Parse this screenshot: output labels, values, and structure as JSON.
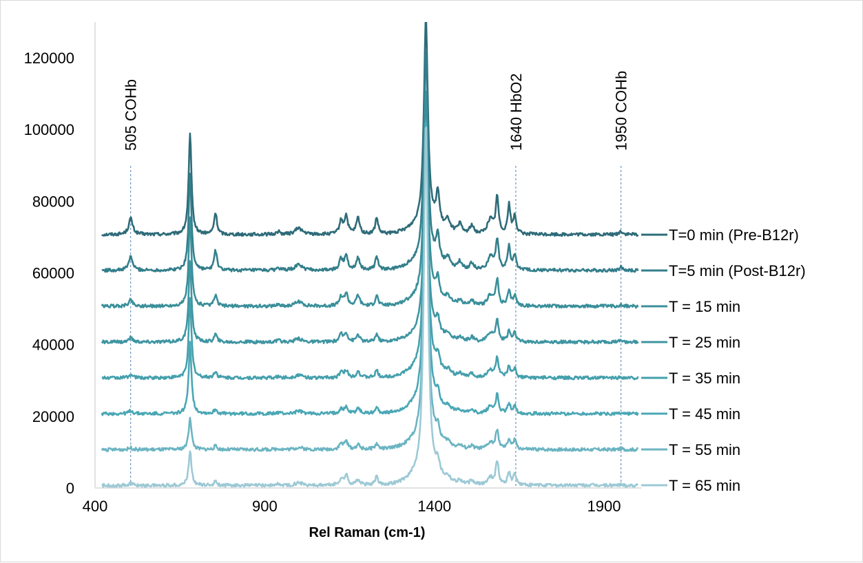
{
  "chart_data": {
    "type": "line",
    "title": "",
    "xlabel": "Rel Raman (cm-1)",
    "ylabel": "",
    "xlim": [
      400,
      2200
    ],
    "ylim": [
      0,
      130000
    ],
    "x_ticks": [
      "400",
      "900",
      "1400",
      "1900"
    ],
    "y_ticks": [
      "0",
      "20000",
      "40000",
      "60000",
      "80000",
      "100000",
      "120000"
    ],
    "grid": false,
    "legend_placement": "right",
    "x_range": [
      420,
      2000
    ],
    "annotations": [
      {
        "x": 505,
        "label": "505 COHb"
      },
      {
        "x": 1640,
        "label": "1640 HbO2"
      },
      {
        "x": 1950,
        "label": "1950 COHb"
      }
    ],
    "peaks": [
      {
        "x": 505,
        "width": 7,
        "amps": [
          4500,
          3800,
          1800,
          1200,
          900,
          800,
          500,
          600
        ]
      },
      {
        "x": 680,
        "width": 5,
        "amps": [
          28000,
          27000,
          25000,
          23000,
          22000,
          20000,
          9000,
          9800
        ]
      },
      {
        "x": 755,
        "width": 5,
        "amps": [
          6000,
          5500,
          3000,
          2200,
          1800,
          1200,
          1000,
          1200
        ]
      },
      {
        "x": 940,
        "width": 6,
        "amps": [
          800,
          700,
          500,
          400,
          300,
          300,
          300,
          300
        ]
      },
      {
        "x": 1000,
        "width": 12,
        "amps": [
          1800,
          1600,
          1300,
          900,
          800,
          700,
          600,
          800
        ]
      },
      {
        "x": 1125,
        "width": 6,
        "amps": [
          3500,
          3000,
          2500,
          2000,
          1500,
          1400,
          1600,
          1700
        ]
      },
      {
        "x": 1140,
        "width": 6,
        "amps": [
          5000,
          4000,
          3500,
          2500,
          2000,
          1700,
          2200,
          2800
        ]
      },
      {
        "x": 1175,
        "width": 6,
        "amps": [
          4500,
          3500,
          3000,
          2000,
          1800,
          1500,
          1300,
          1600
        ]
      },
      {
        "x": 1230,
        "width": 5,
        "amps": [
          4500,
          3800,
          2900,
          2200,
          1900,
          1600,
          1500,
          2300
        ]
      },
      {
        "x": 1375,
        "width": 7,
        "amps": [
          58000,
          59000,
          58000,
          59000,
          70000,
          80000,
          88000,
          99000
        ]
      },
      {
        "x": 1410,
        "width": 6,
        "amps": [
          9000,
          7000,
          5000,
          4000,
          3500,
          3000,
          3000,
          3500
        ]
      },
      {
        "x": 1440,
        "width": 8,
        "amps": [
          3000,
          2500,
          1800,
          1500,
          1200,
          1000,
          1000,
          1200
        ]
      },
      {
        "x": 1475,
        "width": 7,
        "amps": [
          2500,
          2000,
          1500,
          1200,
          1000,
          800,
          800,
          1000
        ]
      },
      {
        "x": 1510,
        "width": 7,
        "amps": [
          2200,
          1800,
          1500,
          1200,
          1000,
          800,
          800,
          1000
        ]
      },
      {
        "x": 1565,
        "width": 10,
        "amps": [
          4000,
          3500,
          3000,
          2500,
          2000,
          1800,
          1800,
          2000
        ]
      },
      {
        "x": 1585,
        "width": 5,
        "amps": [
          10000,
          8500,
          7000,
          6000,
          5500,
          5000,
          5200,
          6500
        ]
      },
      {
        "x": 1620,
        "width": 5,
        "amps": [
          8000,
          6500,
          4000,
          3000,
          3000,
          2800,
          2800,
          3500
        ]
      },
      {
        "x": 1637,
        "width": 5,
        "amps": [
          5000,
          4000,
          3000,
          2500,
          2500,
          2000,
          2500,
          3000
        ]
      },
      {
        "x": 1950,
        "width": 5,
        "amps": [
          1000,
          900,
          500,
          400,
          300,
          300,
          300,
          300
        ]
      }
    ],
    "series": [
      {
        "name": "T=0 min (Pre-B12r)",
        "offset": 70000,
        "color": "#2e6b78"
      },
      {
        "name": "T=5 min (Post-B12r)",
        "offset": 60000,
        "color": "#337e8b"
      },
      {
        "name": "T = 15 min",
        "offset": 50000,
        "color": "#3a8f9a"
      },
      {
        "name": "T = 25  min",
        "offset": 40000,
        "color": "#3f95a2"
      },
      {
        "name": "T = 35 min",
        "offset": 30000,
        "color": "#45a0ad"
      },
      {
        "name": "T = 45 min",
        "offset": 20000,
        "color": "#4aa7b5"
      },
      {
        "name": "T = 55 min",
        "offset": 10000,
        "color": "#6bb4c2"
      },
      {
        "name": "T = 65 min",
        "offset": 0,
        "color": "#9cc9d5"
      }
    ]
  }
}
